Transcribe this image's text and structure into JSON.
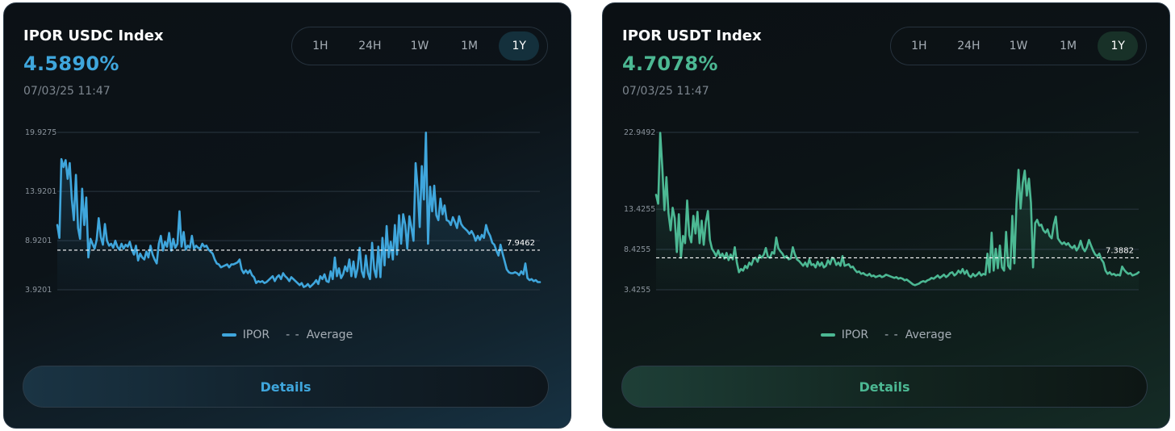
{
  "cards": [
    {
      "title": "IPOR USDC Index",
      "value": "4.5890%",
      "timestamp": "07/03/25 11:47",
      "accent": "#3fa6dc",
      "ranges": [
        "1H",
        "24H",
        "1W",
        "1M",
        "1Y"
      ],
      "active_range": "1Y",
      "legend": {
        "series": "IPOR",
        "average": "Average"
      },
      "details_label": "Details"
    },
    {
      "title": "IPOR USDT Index",
      "value": "4.7078%",
      "timestamp": "07/03/25 11:47",
      "accent": "#4cb893",
      "ranges": [
        "1H",
        "24H",
        "1W",
        "1M",
        "1Y"
      ],
      "active_range": "1Y",
      "legend": {
        "series": "IPOR",
        "average": "Average"
      },
      "details_label": "Details"
    }
  ],
  "chart_data": [
    {
      "type": "line",
      "title": "IPOR USDC Index",
      "period": "1Y",
      "yticks": [
        "3.9201",
        "8.9201",
        "13.9201",
        "19.9275"
      ],
      "ylim": [
        3.9201,
        19.9275
      ],
      "average": 7.9462,
      "average_label": "7.9462",
      "series": [
        {
          "name": "IPOR",
          "color": "#3fa6dc",
          "values": [
            10.5,
            9.2,
            17.2,
            16.4,
            17.1,
            15.2,
            16.8,
            13.1,
            11.0,
            15.6,
            10.2,
            9.1,
            14.2,
            10.5,
            13.3,
            7.2,
            9.1,
            8.6,
            8.1,
            9.0,
            11.2,
            9.3,
            8.5,
            10.6,
            8.9,
            8.4,
            8.6,
            8.2,
            8.9,
            8.3,
            8.0,
            8.6,
            8.1,
            8.5,
            8.3,
            8.8,
            8.0,
            7.5,
            8.4,
            6.9,
            7.6,
            7.2,
            7.0,
            7.8,
            7.2,
            8.4,
            7.5,
            7.0,
            6.6,
            8.6,
            9.4,
            7.9,
            8.8,
            8.3,
            9.7,
            7.9,
            9.1,
            8.2,
            8.6,
            11.9,
            8.3,
            9.8,
            8.0,
            8.4,
            8.2,
            9.4,
            8.1,
            8.4,
            8.2,
            8.1,
            8.6,
            8.3,
            8.4,
            8.0,
            7.8,
            7.6,
            7.0,
            6.6,
            6.5,
            6.2,
            6.3,
            6.4,
            6.5,
            6.2,
            6.5,
            6.5,
            6.6,
            6.7,
            7.0,
            6.0,
            5.6,
            5.9,
            5.6,
            5.9,
            5.4,
            5.2,
            4.6,
            4.8,
            4.7,
            4.8,
            4.6,
            4.7,
            4.9,
            5.1,
            5.3,
            4.8,
            5.2,
            5.4,
            5.0,
            5.6,
            5.3,
            5.1,
            4.8,
            5.2,
            5.0,
            4.8,
            4.6,
            4.4,
            4.6,
            4.2,
            4.3,
            4.5,
            4.2,
            4.4,
            4.6,
            4.9,
            4.5,
            5.3,
            5.0,
            5.5,
            4.8,
            4.7,
            5.8,
            5.0,
            7.2,
            5.3,
            6.1,
            5.1,
            5.5,
            6.3,
            5.8,
            7.0,
            5.3,
            6.8,
            5.2,
            6.1,
            8.2,
            5.8,
            5.2,
            7.4,
            5.6,
            5.0,
            8.7,
            6.0,
            5.2,
            8.3,
            5.2,
            9.2,
            6.4,
            10.4,
            7.2,
            8.8,
            7.0,
            10.5,
            7.5,
            11.5,
            8.6,
            11.6,
            10.5,
            8.1,
            11.4,
            10.2,
            8.9,
            16.8,
            14.2,
            10.3,
            16.5,
            13.1,
            19.9,
            8.6,
            14.4,
            11.9,
            14.5,
            11.5,
            11.0,
            13.2,
            11.6,
            12.5,
            11.0,
            10.9,
            10.5,
            11.3,
            10.8,
            10.2,
            11.4,
            10.6,
            10.3,
            10.1,
            9.9,
            9.6,
            9.9,
            9.5,
            8.9,
            9.4,
            9.0,
            9.5,
            9.2,
            10.5,
            9.8,
            9.4,
            8.7,
            8.5,
            7.9,
            7.4,
            8.5,
            7.6,
            6.8,
            6.0,
            5.7,
            5.6,
            5.6,
            5.7,
            5.6,
            5.4,
            5.8,
            5.5,
            6.6,
            5.1,
            4.9,
            5.0,
            4.8,
            4.9,
            4.7,
            4.7
          ]
        }
      ],
      "legend": [
        "IPOR",
        "Average"
      ]
    },
    {
      "type": "line",
      "title": "IPOR USDT Index",
      "period": "1Y",
      "yticks": [
        "3.4255",
        "8.4255",
        "13.4255",
        "22.9492"
      ],
      "ylim": [
        3.4255,
        22.9492
      ],
      "average": 7.3882,
      "average_label": "7.3882",
      "series": [
        {
          "name": "IPOR",
          "color": "#4cb893",
          "values": [
            15.2,
            14.1,
            22.9,
            18.6,
            13.3,
            17.4,
            12.9,
            10.8,
            13.6,
            12.3,
            8.1,
            12.8,
            7.4,
            10.1,
            9.2,
            14.5,
            10.2,
            9.3,
            12.6,
            10.4,
            13.1,
            9.2,
            12.0,
            9.0,
            11.8,
            13.2,
            9.6,
            8.5,
            8.1,
            7.6,
            8.3,
            7.5,
            7.9,
            7.3,
            8.0,
            7.1,
            7.8,
            7.2,
            8.7,
            6.8,
            5.6,
            6.0,
            5.8,
            6.4,
            6.1,
            6.8,
            6.5,
            7.2,
            7.4,
            6.9,
            7.7,
            7.4,
            7.8,
            8.6,
            7.5,
            7.4,
            8.1,
            7.9,
            9.9,
            8.6,
            8.2,
            7.9,
            7.4,
            7.6,
            7.2,
            7.3,
            8.7,
            7.8,
            7.2,
            7.0,
            6.7,
            6.4,
            6.8,
            6.3,
            7.2,
            6.5,
            6.6,
            6.2,
            6.9,
            6.4,
            6.8,
            6.2,
            6.4,
            7.1,
            6.6,
            7.4,
            7.2,
            6.5,
            6.8,
            6.4,
            7.6,
            6.4,
            6.5,
            6.6,
            6.2,
            6.3,
            5.9,
            5.6,
            5.7,
            5.4,
            5.5,
            5.3,
            5.2,
            5.4,
            5.1,
            5.2,
            5.0,
            5.1,
            5.2,
            5.0,
            5.1,
            5.3,
            5.2,
            5.1,
            5.0,
            4.9,
            5.0,
            4.8,
            4.9,
            4.8,
            4.6,
            4.7,
            4.5,
            4.3,
            4.1,
            4.0,
            4.1,
            4.2,
            4.4,
            4.5,
            4.4,
            4.6,
            4.7,
            4.9,
            4.8,
            5.0,
            5.2,
            4.9,
            5.1,
            5.3,
            5.0,
            5.2,
            5.5,
            5.6,
            5.2,
            5.4,
            5.8,
            5.5,
            6.0,
            5.4,
            5.8,
            5.2,
            5.0,
            5.4,
            5.1,
            5.3,
            5.6,
            5.2,
            5.4,
            5.3,
            7.9,
            5.6,
            10.5,
            5.8,
            8.5,
            6.1,
            8.9,
            6.2,
            5.8,
            10.6,
            6.4,
            6.0,
            12.6,
            6.7,
            14.2,
            18.3,
            13.5,
            16.7,
            18.2,
            15.1,
            17.2,
            14.2,
            6.2,
            11.7,
            12.1,
            11.4,
            11.5,
            10.8,
            10.5,
            10.9,
            10.1,
            9.8,
            11.5,
            12.5,
            9.8,
            9.4,
            9.1,
            9.3,
            9.0,
            9.2,
            8.8,
            8.6,
            8.9,
            8.3,
            8.7,
            9.5,
            8.6,
            8.2,
            8.7,
            9.6,
            8.9,
            8.3,
            7.8,
            7.6,
            7.9,
            7.2,
            6.8,
            5.8,
            5.4,
            5.6,
            5.3,
            5.4,
            5.2,
            5.3,
            5.2,
            6.3,
            5.9,
            5.6,
            5.4,
            5.5,
            5.2,
            5.3,
            5.4,
            5.6
          ]
        }
      ],
      "legend": [
        "IPOR",
        "Average"
      ]
    }
  ]
}
